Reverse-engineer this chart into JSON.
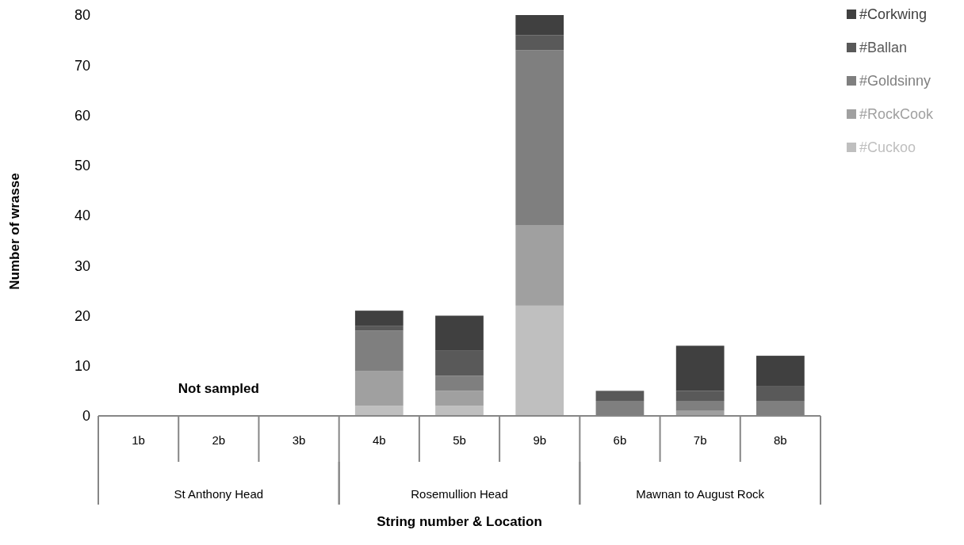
{
  "chart_data": {
    "type": "bar",
    "stacked": true,
    "xlabel": "String number & Location",
    "ylabel": "Number of wrasse",
    "categories": [
      "1b",
      "2b",
      "3b",
      "4b",
      "5b",
      "9b",
      "6b",
      "7b",
      "8b"
    ],
    "series": [
      {
        "name": "#Cuckoo",
        "color": "#bfbfbf",
        "values": [
          null,
          null,
          null,
          2,
          2,
          22,
          0,
          0,
          0
        ]
      },
      {
        "name": "#RockCook",
        "color": "#a0a0a0",
        "values": [
          null,
          null,
          null,
          7,
          3,
          16,
          0,
          1,
          0
        ]
      },
      {
        "name": "#Goldsinny",
        "color": "#7f7f7f",
        "values": [
          null,
          null,
          null,
          8,
          3,
          35,
          3,
          2,
          3
        ]
      },
      {
        "name": "#Ballan",
        "color": "#595959",
        "values": [
          null,
          null,
          null,
          1,
          5,
          3,
          2,
          2,
          3
        ]
      },
      {
        "name": "#Corkwing",
        "color": "#404040",
        "values": [
          null,
          null,
          null,
          3,
          7,
          4,
          0,
          9,
          6
        ]
      }
    ],
    "ylim": [
      0,
      80
    ],
    "yticks": [
      0,
      10,
      20,
      30,
      40,
      50,
      60,
      70,
      80
    ],
    "grid": false,
    "legend": "top right",
    "annotations": [
      "St Anthony Head",
      "Rosemullion Head",
      "Mawnan to August Rock",
      "Not sampled"
    ]
  }
}
